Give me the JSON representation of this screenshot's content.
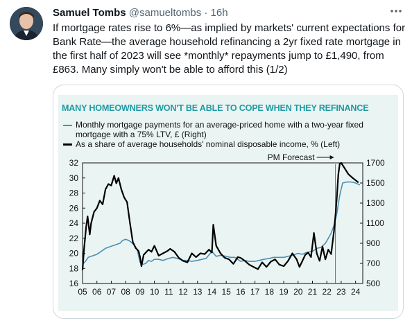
{
  "tweet": {
    "author_name": "Samuel Tombs",
    "handle": "@samueltombs",
    "separator": "·",
    "time": "16h",
    "more_icon": "more-dots-icon",
    "text": "If mortgage rates rise to 6%—as implied by markets' current expectations for Bank Rate—the average household refinancing a 2yr fixed rate mortgage in the first half of 2023 will see *monthly* repayments jump to £1,490, from £863. Many simply won't be able to afford this (1/2)"
  },
  "colors": {
    "title": "#1e9aa3",
    "series_payment": "#4b8fb3",
    "series_share": "#000000",
    "chart_bg": "#eaf4f2"
  },
  "chart_data": {
    "type": "line",
    "title": "MANY HOMEOWNERS WON'T BE ABLE TO COPE WHEN THEY REFINANCE",
    "annotation": "PM Forecast",
    "legend_position": "top-left",
    "x_ticks": [
      "05",
      "06",
      "07",
      "08",
      "09",
      "10",
      "11",
      "12",
      "13",
      "14",
      "15",
      "16",
      "17",
      "18",
      "19",
      "20",
      "21",
      "22",
      "23",
      "24"
    ],
    "xlim": [
      2005,
      2024.5
    ],
    "y_left": {
      "lim": [
        16,
        32
      ],
      "ticks": [
        "16",
        "18",
        "20",
        "22",
        "24",
        "26",
        "28",
        "30",
        "32"
      ]
    },
    "y_right": {
      "lim": [
        500,
        1700
      ],
      "ticks": [
        "500",
        "700",
        "900",
        "1100",
        "1300",
        "1500",
        "1700"
      ]
    },
    "forecast_start": 2022.6,
    "series": [
      {
        "name": "Monthly mortgage payments for an average-priced home with a two-year fixed mortgage with a 75% LTV, £ (Right)",
        "axis": "right",
        "x": [
          2005.0,
          2005.2,
          2005.4,
          2005.6,
          2005.8,
          2006.0,
          2006.2,
          2006.4,
          2006.6,
          2006.8,
          2007.0,
          2007.2,
          2007.4,
          2007.6,
          2007.8,
          2008.0,
          2008.2,
          2008.4,
          2008.6,
          2008.8,
          2009.0,
          2009.2,
          2009.4,
          2009.6,
          2009.8,
          2010.0,
          2010.3,
          2010.6,
          2011.0,
          2011.3,
          2011.6,
          2012.0,
          2012.3,
          2012.6,
          2013.0,
          2013.3,
          2013.6,
          2014.0,
          2014.3,
          2014.6,
          2015.0,
          2015.3,
          2015.6,
          2016.0,
          2016.3,
          2016.6,
          2017.0,
          2017.3,
          2017.6,
          2018.0,
          2018.3,
          2018.6,
          2019.0,
          2019.3,
          2019.6,
          2020.0,
          2020.3,
          2020.6,
          2021.0,
          2021.3,
          2021.6,
          2021.9,
          2022.1,
          2022.3,
          2022.5,
          2022.7,
          2022.9,
          2023.1,
          2023.4,
          2023.7,
          2024.0,
          2024.3
        ],
        "y": [
          690,
          720,
          760,
          770,
          780,
          790,
          810,
          830,
          850,
          860,
          870,
          880,
          890,
          900,
          930,
          940,
          930,
          910,
          880,
          840,
          710,
          690,
          700,
          730,
          720,
          740,
          740,
          730,
          750,
          760,
          750,
          730,
          730,
          720,
          730,
          740,
          750,
          820,
          770,
          780,
          770,
          760,
          760,
          720,
          730,
          720,
          720,
          730,
          740,
          750,
          760,
          760,
          760,
          770,
          780,
          800,
          790,
          810,
          820,
          850,
          860,
          900,
          950,
          1000,
          1080,
          1200,
          1380,
          1500,
          1510,
          1510,
          1500,
          1480
        ]
      },
      {
        "name": "As a share of average households' nominal disposable income, % (Left)",
        "axis": "left",
        "x": [
          2005.0,
          2005.1,
          2005.25,
          2005.35,
          2005.5,
          2005.6,
          2005.8,
          2006.0,
          2006.2,
          2006.4,
          2006.6,
          2006.8,
          2007.0,
          2007.2,
          2007.35,
          2007.5,
          2007.7,
          2007.9,
          2008.1,
          2008.3,
          2008.5,
          2008.7,
          2008.9,
          2009.0,
          2009.1,
          2009.25,
          2009.4,
          2009.6,
          2009.8,
          2010.0,
          2010.3,
          2010.6,
          2010.9,
          2011.1,
          2011.4,
          2011.7,
          2012.0,
          2012.3,
          2012.6,
          2012.9,
          2013.2,
          2013.5,
          2013.8,
          2014.0,
          2014.1,
          2014.3,
          2014.6,
          2014.9,
          2015.2,
          2015.5,
          2015.8,
          2016.0,
          2016.3,
          2016.6,
          2016.9,
          2017.2,
          2017.5,
          2017.8,
          2018.1,
          2018.4,
          2018.7,
          2019.0,
          2019.3,
          2019.6,
          2019.9,
          2020.1,
          2020.3,
          2020.5,
          2020.7,
          2020.9,
          2021.1,
          2021.3,
          2021.5,
          2021.7,
          2021.9,
          2022.1,
          2022.3,
          2022.5,
          2022.6,
          2022.7,
          2022.8,
          2022.9,
          2023.0,
          2023.2,
          2023.5,
          2023.8,
          2024.0,
          2024.2
        ],
        "y": [
          17.8,
          20.5,
          23.5,
          24.9,
          22.5,
          24.0,
          25.5,
          26.0,
          27.0,
          26.5,
          28.5,
          29.2,
          29.0,
          30.3,
          29.3,
          30.0,
          28.5,
          27.4,
          26.8,
          24.0,
          21.5,
          20.7,
          20.3,
          19.5,
          18.3,
          19.8,
          20.1,
          20.5,
          20.2,
          21.0,
          19.7,
          20.0,
          20.3,
          20.6,
          20.2,
          19.4,
          19.0,
          18.8,
          20.0,
          19.5,
          20.0,
          19.9,
          20.5,
          20.1,
          23.8,
          21.0,
          20.0,
          19.4,
          19.2,
          18.6,
          19.5,
          19.4,
          19.0,
          18.5,
          18.2,
          17.9,
          18.8,
          18.2,
          18.9,
          19.2,
          18.5,
          18.3,
          19.0,
          20.0,
          19.2,
          18.2,
          19.0,
          19.8,
          20.1,
          19.5,
          22.7,
          20.0,
          19.0,
          20.9,
          19.2,
          20.5,
          19.9,
          23.0,
          25.0,
          27.5,
          30.5,
          31.9,
          32.0,
          31.4,
          30.5,
          30.0,
          29.7,
          29.4
        ]
      }
    ]
  }
}
